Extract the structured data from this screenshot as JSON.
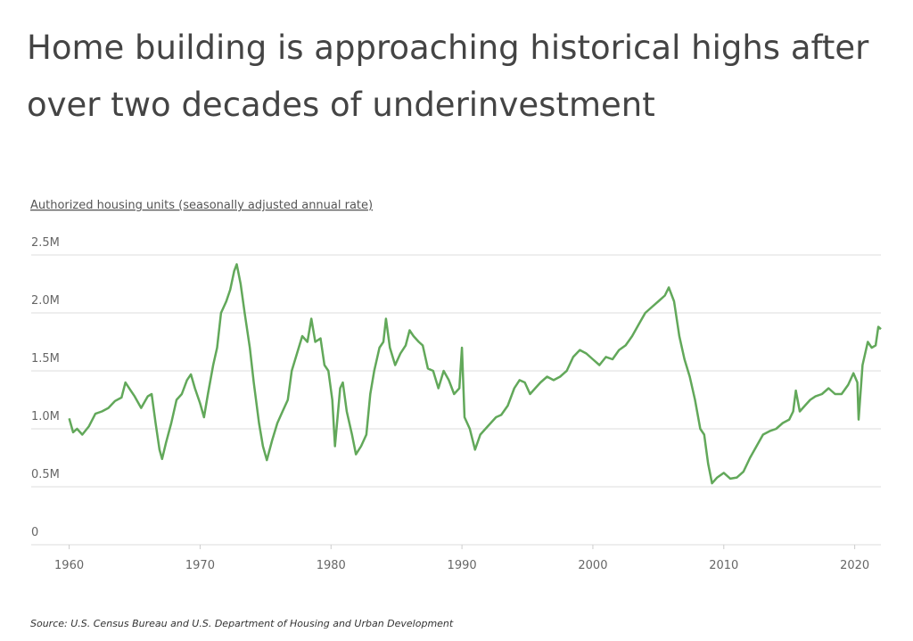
{
  "chart_data": {
    "type": "line",
    "title": "Home building is approaching historical highs after over two decades of underinvestment",
    "y_label": "Authorized housing units (seasonally adjusted annual rate)",
    "source": "Source:  U.S. Census Bureau and U.S. Department of Housing and Urban Development",
    "x": [
      1960.0,
      1960.3,
      1960.6,
      1961.0,
      1961.5,
      1962.0,
      1962.5,
      1963.0,
      1963.5,
      1964.0,
      1964.3,
      1964.7,
      1965.0,
      1965.5,
      1966.0,
      1966.3,
      1966.6,
      1966.9,
      1967.1,
      1967.4,
      1967.8,
      1968.2,
      1968.6,
      1969.0,
      1969.3,
      1969.6,
      1970.0,
      1970.3,
      1970.6,
      1971.0,
      1971.3,
      1971.6,
      1972.0,
      1972.3,
      1972.6,
      1972.8,
      1973.1,
      1973.4,
      1973.8,
      1974.1,
      1974.5,
      1974.8,
      1975.1,
      1975.5,
      1975.9,
      1976.3,
      1976.7,
      1977.0,
      1977.4,
      1977.8,
      1978.2,
      1978.5,
      1978.8,
      1979.2,
      1979.5,
      1979.8,
      1980.1,
      1980.3,
      1980.7,
      1980.9,
      1981.2,
      1981.6,
      1981.9,
      1982.3,
      1982.7,
      1983.0,
      1983.3,
      1983.7,
      1984.0,
      1984.2,
      1984.5,
      1984.9,
      1985.3,
      1985.7,
      1986.0,
      1986.3,
      1986.7,
      1987.0,
      1987.4,
      1987.8,
      1988.2,
      1988.6,
      1989.0,
      1989.4,
      1989.8,
      1990.0,
      1990.2,
      1990.6,
      1991.0,
      1991.4,
      1991.8,
      1992.2,
      1992.6,
      1993.0,
      1993.5,
      1994.0,
      1994.4,
      1994.8,
      1995.2,
      1995.6,
      1996.0,
      1996.5,
      1997.0,
      1997.5,
      1998.0,
      1998.5,
      1999.0,
      1999.5,
      2000.0,
      2000.5,
      2001.0,
      2001.5,
      2002.0,
      2002.5,
      2003.0,
      2003.5,
      2004.0,
      2004.5,
      2005.0,
      2005.5,
      2005.8,
      2006.2,
      2006.6,
      2007.0,
      2007.4,
      2007.8,
      2008.2,
      2008.5,
      2008.8,
      2009.1,
      2009.5,
      2010.0,
      2010.5,
      2011.0,
      2011.5,
      2012.0,
      2012.5,
      2013.0,
      2013.5,
      2014.0,
      2014.5,
      2015.0,
      2015.3,
      2015.5,
      2015.8,
      2016.2,
      2016.6,
      2017.0,
      2017.5,
      2018.0,
      2018.5,
      2019.0,
      2019.5,
      2019.9,
      2020.2,
      2020.3,
      2020.6,
      2021.0,
      2021.3,
      2021.6,
      2021.8,
      2022.0
    ],
    "series": [
      {
        "color": "#62a85a",
        "values": [
          1090000,
          970000,
          1000000,
          950000,
          1020000,
          1130000,
          1150000,
          1180000,
          1240000,
          1270000,
          1400000,
          1330000,
          1280000,
          1180000,
          1280000,
          1300000,
          1050000,
          820000,
          740000,
          880000,
          1050000,
          1250000,
          1300000,
          1420000,
          1470000,
          1350000,
          1220000,
          1100000,
          1300000,
          1550000,
          1700000,
          2000000,
          2100000,
          2200000,
          2360000,
          2420000,
          2250000,
          2000000,
          1700000,
          1400000,
          1050000,
          850000,
          730000,
          900000,
          1050000,
          1150000,
          1250000,
          1500000,
          1650000,
          1800000,
          1750000,
          1950000,
          1750000,
          1780000,
          1550000,
          1500000,
          1250000,
          850000,
          1350000,
          1400000,
          1150000,
          950000,
          780000,
          850000,
          950000,
          1300000,
          1500000,
          1700000,
          1750000,
          1950000,
          1700000,
          1550000,
          1650000,
          1720000,
          1850000,
          1800000,
          1750000,
          1720000,
          1520000,
          1500000,
          1350000,
          1500000,
          1420000,
          1300000,
          1350000,
          1700000,
          1100000,
          1000000,
          820000,
          950000,
          1000000,
          1050000,
          1100000,
          1120000,
          1200000,
          1350000,
          1420000,
          1400000,
          1300000,
          1350000,
          1400000,
          1450000,
          1420000,
          1450000,
          1500000,
          1620000,
          1680000,
          1650000,
          1600000,
          1550000,
          1620000,
          1600000,
          1680000,
          1720000,
          1800000,
          1900000,
          2000000,
          2050000,
          2100000,
          2150000,
          2220000,
          2100000,
          1800000,
          1600000,
          1450000,
          1250000,
          1000000,
          950000,
          700000,
          530000,
          580000,
          620000,
          570000,
          580000,
          630000,
          750000,
          850000,
          950000,
          980000,
          1000000,
          1050000,
          1080000,
          1150000,
          1330000,
          1150000,
          1200000,
          1250000,
          1280000,
          1300000,
          1350000,
          1300000,
          1300000,
          1380000,
          1480000,
          1400000,
          1080000,
          1550000,
          1750000,
          1700000,
          1720000,
          1880000,
          1860000
        ]
      }
    ],
    "xlim": [
      1957.1,
      2022.0
    ],
    "xticks": [
      1960,
      1970,
      1980,
      1990,
      2000,
      2010,
      2020
    ],
    "ylim": [
      0,
      2500000
    ],
    "yticks": [
      0,
      {
        "value": 500000,
        "label": "0.5M"
      },
      {
        "value": 1000000,
        "label": "1.0M"
      },
      {
        "value": 1500000,
        "label": "1.5M"
      },
      {
        "value": 2000000,
        "label": "2.0M"
      },
      {
        "value": 2500000,
        "label": "2.5M"
      }
    ],
    "grid": true
  }
}
